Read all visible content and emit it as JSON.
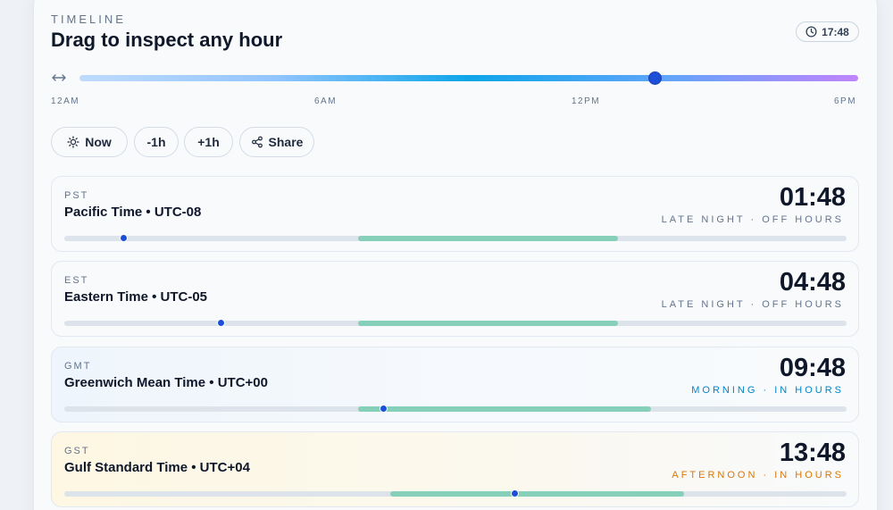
{
  "header": {
    "eyebrow": "TIMELINE",
    "title": "Drag to inspect any hour",
    "current_time": "17:48"
  },
  "slider": {
    "position_fraction": 0.739,
    "ticks": [
      "12AM",
      "6AM",
      "12PM",
      "6PM"
    ]
  },
  "actions": [
    {
      "label": "Now",
      "icon": "sun-icon"
    },
    {
      "label": "-1h"
    },
    {
      "label": "+1h"
    },
    {
      "label": "Share",
      "icon": "share-icon"
    }
  ],
  "zones": [
    {
      "abbr": "PST",
      "name": "Pacific Time • UTC-08",
      "time": "01:48",
      "status": "LATE NIGHT · OFF HOURS",
      "day_fraction": 0.075,
      "work_start": 9,
      "work_end": 17
    },
    {
      "abbr": "EST",
      "name": "Eastern Time • UTC-05",
      "time": "04:48",
      "status": "LATE NIGHT · OFF HOURS",
      "day_fraction": 0.2,
      "work_start": 9,
      "work_end": 17
    },
    {
      "abbr": "GMT",
      "name": "Greenwich Mean Time • UTC+00",
      "time": "09:48",
      "status": "MORNING · IN HOURS",
      "day_fraction": 0.408,
      "work_start": 9,
      "work_end": 18
    },
    {
      "abbr": "GST",
      "name": "Gulf Standard Time • UTC+04",
      "time": "13:48",
      "status": "AFTERNOON · IN HOURS",
      "day_fraction": 0.575,
      "work_start": 10,
      "work_end": 19
    }
  ],
  "colors": {
    "accent": "#1d4ed8",
    "work_hours": "#86cfb8",
    "morning": "#0284c7",
    "afternoon": "#d97706"
  }
}
